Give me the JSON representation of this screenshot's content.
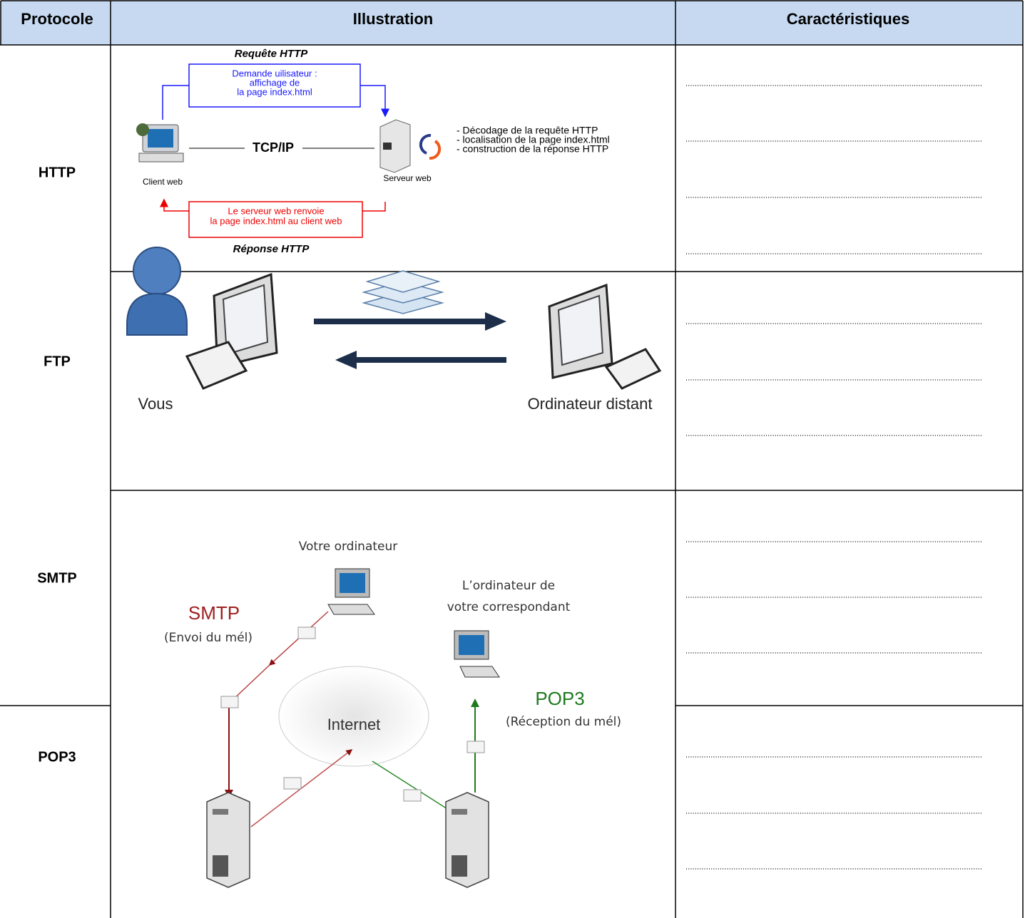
{
  "table": {
    "header": [
      "Protocole",
      "Illustration",
      "Caractéristiques"
    ],
    "protocols": [
      "HTTP",
      "FTP",
      "SMTP",
      "POP3"
    ]
  },
  "illustrations": {
    "http": {
      "request_title": "Requête HTTP",
      "request_box": [
        "Demande uilisateur :",
        "affichage de",
        "la page index.html"
      ],
      "network": "TCP/IP",
      "client": "Client web",
      "server": "Serveur web",
      "server_steps": [
        "- Décodage de la requête HTTP",
        "- localisation de la page index.html",
        "- construction de la réponse HTTP"
      ],
      "response_box": [
        "Le serveur web renvoie",
        "la page index.html au client web"
      ],
      "response_title": "Réponse HTTP"
    },
    "ftp": {
      "local": "Vous",
      "remote": "Ordinateur distant"
    },
    "mail": {
      "sender": "Votre ordinateur",
      "recipient": [
        "L’ordinateur de",
        "votre correspondant"
      ],
      "smtp": "SMTP",
      "smtp_note": "(Envoi du mél)",
      "internet": "Internet",
      "pop3": "POP3",
      "pop3_note": "(Réception du mél)"
    }
  }
}
